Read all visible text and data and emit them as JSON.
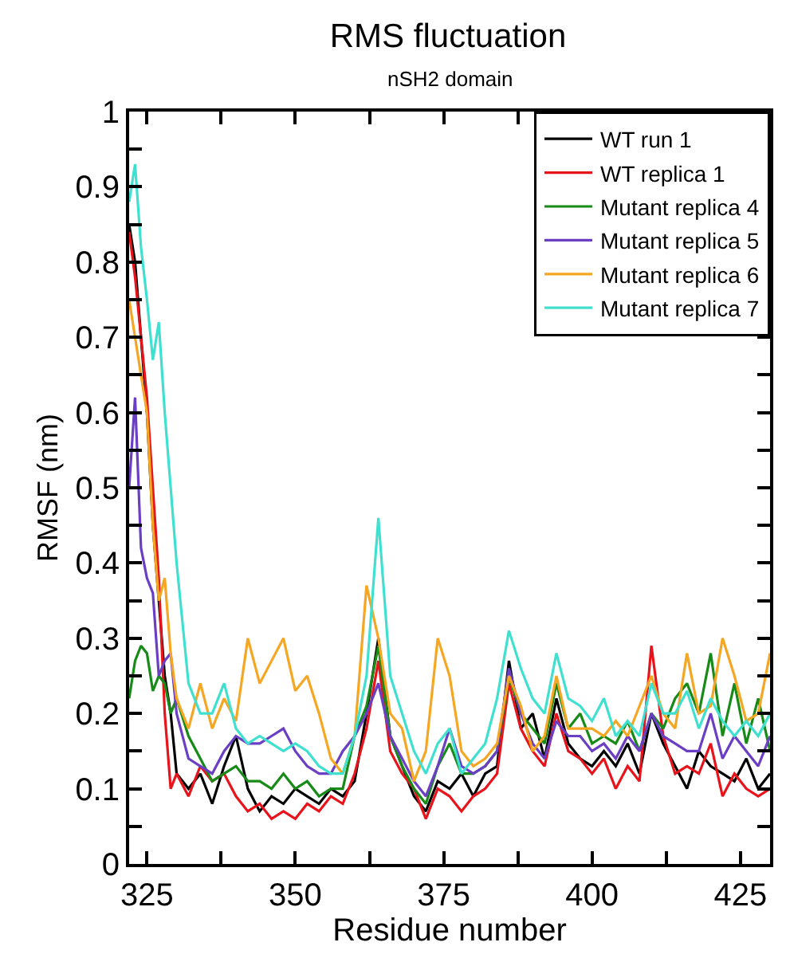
{
  "chart_data": {
    "type": "line",
    "title": "RMS fluctuation",
    "subtitle": "nSH2 domain",
    "xlabel": "Residue number",
    "ylabel": "RMSF (nm)",
    "x": [
      322,
      323,
      324,
      325,
      326,
      327,
      328,
      329,
      330,
      332,
      334,
      336,
      338,
      340,
      342,
      344,
      346,
      348,
      350,
      352,
      354,
      356,
      358,
      360,
      362,
      364,
      366,
      368,
      370,
      372,
      374,
      376,
      378,
      380,
      382,
      384,
      386,
      388,
      390,
      392,
      394,
      396,
      398,
      400,
      402,
      404,
      406,
      408,
      410,
      412,
      414,
      416,
      418,
      420,
      422,
      424,
      426,
      428,
      430
    ],
    "xlim": [
      322,
      430
    ],
    "xticks": [
      325,
      {
        "value": 337.5,
        "label": null
      },
      350,
      {
        "value": 362.5,
        "label": null
      },
      375,
      {
        "value": 387.5,
        "label": null
      },
      400,
      {
        "value": 412.5,
        "label": null
      },
      425
    ],
    "ylim": [
      0,
      1
    ],
    "yticks": [
      0,
      {
        "value": 0.05,
        "label": null
      },
      0.1,
      {
        "value": 0.15,
        "label": null
      },
      0.2,
      {
        "value": 0.25,
        "label": null
      },
      0.3,
      {
        "value": 0.35,
        "label": null
      },
      0.4,
      {
        "value": 0.45,
        "label": null
      },
      0.5,
      {
        "value": 0.55,
        "label": null
      },
      0.6,
      {
        "value": 0.65,
        "label": null
      },
      0.7,
      {
        "value": 0.75,
        "label": null
      },
      0.8,
      {
        "value": 0.85,
        "label": null
      },
      0.9,
      {
        "value": 0.95,
        "label": null
      },
      1
    ],
    "grid": false,
    "legend": "top right",
    "marker": "none",
    "line_style": "solid",
    "series": [
      {
        "name": "WT run 1",
        "color": "#000000",
        "values": [
          0.85,
          0.8,
          0.7,
          0.6,
          0.45,
          0.35,
          0.25,
          0.2,
          0.12,
          0.1,
          0.12,
          0.08,
          0.13,
          0.17,
          0.1,
          0.07,
          0.09,
          0.08,
          0.1,
          0.09,
          0.08,
          0.1,
          0.09,
          0.11,
          0.2,
          0.3,
          0.17,
          0.13,
          0.09,
          0.07,
          0.11,
          0.1,
          0.12,
          0.09,
          0.12,
          0.13,
          0.27,
          0.18,
          0.2,
          0.14,
          0.22,
          0.16,
          0.14,
          0.13,
          0.15,
          0.13,
          0.16,
          0.12,
          0.2,
          0.16,
          0.13,
          0.1,
          0.15,
          0.13,
          0.12,
          0.11,
          0.14,
          0.1,
          0.12
        ]
      },
      {
        "name": "WT replica 1",
        "color": "#e8141c",
        "values": [
          0.84,
          0.78,
          0.7,
          0.62,
          0.5,
          0.38,
          0.2,
          0.1,
          0.12,
          0.09,
          0.13,
          0.11,
          0.12,
          0.09,
          0.07,
          0.08,
          0.06,
          0.07,
          0.06,
          0.08,
          0.07,
          0.09,
          0.08,
          0.12,
          0.18,
          0.27,
          0.15,
          0.12,
          0.1,
          0.06,
          0.1,
          0.09,
          0.07,
          0.09,
          0.1,
          0.12,
          0.24,
          0.18,
          0.15,
          0.13,
          0.2,
          0.15,
          0.14,
          0.12,
          0.14,
          0.1,
          0.13,
          0.11,
          0.29,
          0.17,
          0.12,
          0.13,
          0.12,
          0.16,
          0.09,
          0.12,
          0.1,
          0.09,
          0.1
        ]
      },
      {
        "name": "Mutant replica 4",
        "color": "#178a17",
        "values": [
          0.22,
          0.27,
          0.29,
          0.28,
          0.23,
          0.25,
          0.24,
          0.2,
          0.22,
          0.17,
          0.14,
          0.11,
          0.12,
          0.13,
          0.11,
          0.11,
          0.1,
          0.12,
          0.1,
          0.11,
          0.09,
          0.1,
          0.1,
          0.17,
          0.21,
          0.29,
          0.17,
          0.13,
          0.1,
          0.08,
          0.13,
          0.16,
          0.12,
          0.12,
          0.13,
          0.15,
          0.25,
          0.2,
          0.18,
          0.16,
          0.24,
          0.18,
          0.2,
          0.16,
          0.17,
          0.16,
          0.19,
          0.15,
          0.2,
          0.18,
          0.22,
          0.24,
          0.2,
          0.28,
          0.17,
          0.24,
          0.16,
          0.22,
          0.15
        ]
      },
      {
        "name": "Mutant replica 5",
        "color": "#6a3fc4",
        "values": [
          0.5,
          0.62,
          0.42,
          0.38,
          0.36,
          0.25,
          0.27,
          0.28,
          0.2,
          0.14,
          0.13,
          0.12,
          0.15,
          0.17,
          0.16,
          0.16,
          0.17,
          0.18,
          0.15,
          0.13,
          0.12,
          0.12,
          0.15,
          0.17,
          0.2,
          0.24,
          0.17,
          0.14,
          0.11,
          0.09,
          0.13,
          0.18,
          0.13,
          0.12,
          0.13,
          0.15,
          0.26,
          0.2,
          0.16,
          0.14,
          0.19,
          0.17,
          0.17,
          0.15,
          0.16,
          0.14,
          0.17,
          0.15,
          0.2,
          0.17,
          0.16,
          0.15,
          0.15,
          0.2,
          0.14,
          0.17,
          0.15,
          0.13,
          0.17
        ]
      },
      {
        "name": "Mutant replica 6",
        "color": "#f5a623",
        "values": [
          0.75,
          0.7,
          0.65,
          0.6,
          0.45,
          0.35,
          0.38,
          0.28,
          0.22,
          0.18,
          0.24,
          0.18,
          0.22,
          0.19,
          0.3,
          0.24,
          0.27,
          0.3,
          0.23,
          0.25,
          0.2,
          0.14,
          0.12,
          0.17,
          0.37,
          0.3,
          0.2,
          0.18,
          0.11,
          0.15,
          0.3,
          0.25,
          0.15,
          0.13,
          0.14,
          0.16,
          0.25,
          0.21,
          0.15,
          0.17,
          0.25,
          0.18,
          0.18,
          0.18,
          0.17,
          0.19,
          0.17,
          0.21,
          0.25,
          0.2,
          0.18,
          0.28,
          0.2,
          0.21,
          0.3,
          0.25,
          0.19,
          0.2,
          0.28
        ]
      },
      {
        "name": "Mutant replica 7",
        "color": "#40e0d0",
        "values": [
          0.88,
          0.93,
          0.82,
          0.75,
          0.67,
          0.72,
          0.6,
          0.5,
          0.4,
          0.24,
          0.2,
          0.2,
          0.24,
          0.18,
          0.16,
          0.17,
          0.16,
          0.15,
          0.16,
          0.15,
          0.13,
          0.12,
          0.12,
          0.17,
          0.25,
          0.46,
          0.25,
          0.2,
          0.15,
          0.12,
          0.16,
          0.18,
          0.12,
          0.14,
          0.16,
          0.22,
          0.31,
          0.26,
          0.22,
          0.2,
          0.28,
          0.22,
          0.21,
          0.19,
          0.22,
          0.17,
          0.19,
          0.17,
          0.24,
          0.2,
          0.2,
          0.23,
          0.18,
          0.22,
          0.19,
          0.17,
          0.19,
          0.17,
          0.2
        ]
      }
    ]
  }
}
